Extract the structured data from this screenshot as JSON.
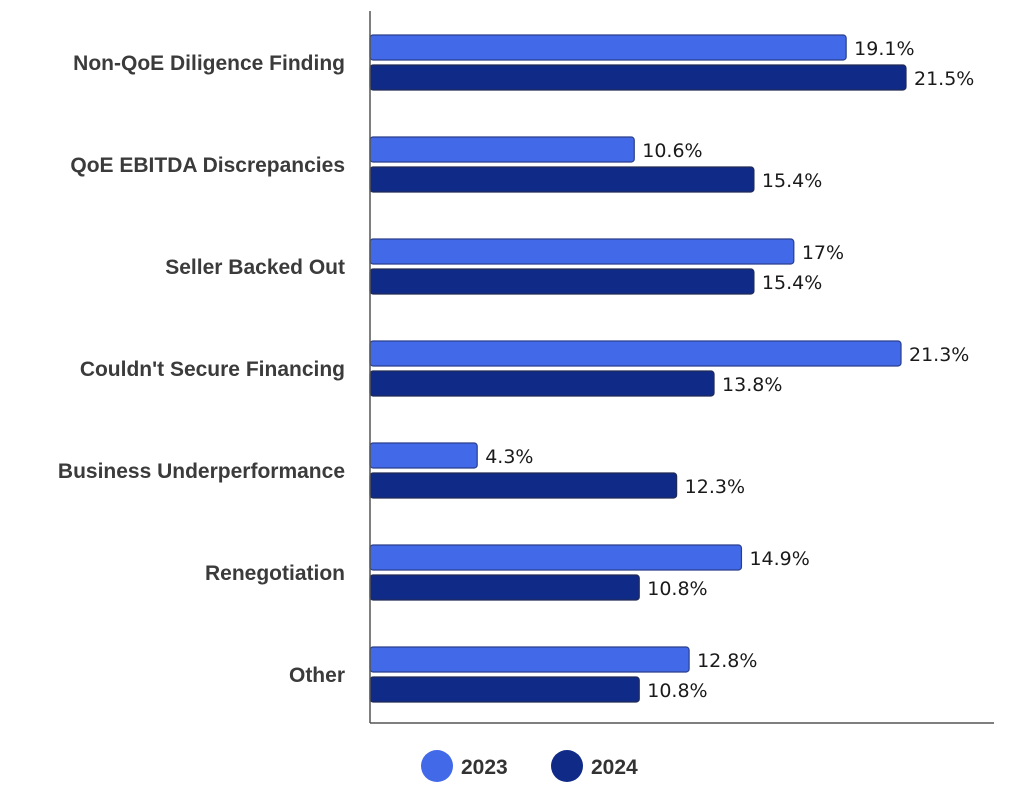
{
  "chart_data": {
    "type": "bar",
    "orientation": "horizontal",
    "title": "",
    "xlabel": "",
    "ylabel": "",
    "xlim": [
      0,
      25
    ],
    "grid": false,
    "legend_position": "bottom-center",
    "categories": [
      "Non-QoE Diligence Finding",
      "QoE EBITDA Discrepancies",
      "Seller Backed Out",
      "Couldn't Secure Financing",
      "Business Underperformance",
      "Renegotiation",
      "Other"
    ],
    "series": [
      {
        "name": "2023",
        "color": "#4169e8",
        "values": [
          19.1,
          10.6,
          17,
          21.3,
          4.3,
          14.9,
          12.8
        ],
        "labels": [
          "19.1%",
          "10.6%",
          "17%",
          "21.3%",
          "4.3%",
          "14.9%",
          "12.8%"
        ]
      },
      {
        "name": "2024",
        "color": "#0f2a87",
        "values": [
          21.5,
          15.4,
          15.4,
          13.8,
          12.3,
          10.8,
          10.8
        ],
        "labels": [
          "21.5%",
          "15.4%",
          "15.4%",
          "13.8%",
          "12.3%",
          "10.8%",
          "10.8%"
        ]
      }
    ]
  }
}
